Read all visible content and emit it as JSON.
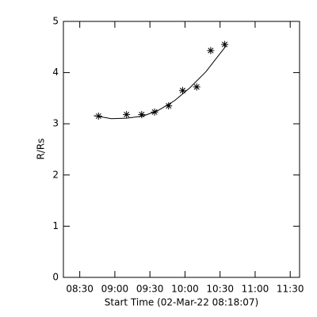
{
  "chart_data": {
    "type": "scatter",
    "xlabel": "Start Time (02-Mar-22 08:18:07)",
    "ylabel": "R/Rs",
    "xlim": [
      "08:16",
      "11:38"
    ],
    "xticks": [
      "08:30",
      "09:00",
      "09:30",
      "10:00",
      "10:30",
      "11:00",
      "11:30"
    ],
    "ylim": [
      0,
      5
    ],
    "yticks": [
      0,
      1,
      2,
      3,
      4,
      5
    ],
    "series": [
      {
        "color": "#000000",
        "marker": "asterisk",
        "x": [
          "08:46",
          "09:10",
          "09:23",
          "09:34",
          "09:46",
          "09:58",
          "10:10",
          "10:22",
          "10:34"
        ],
        "values": [
          3.15,
          3.18,
          3.18,
          3.23,
          3.35,
          3.65,
          3.72,
          4.43,
          4.55
        ]
      },
      {
        "color": "#000000",
        "marker": "line",
        "x": [
          "08:42",
          "08:57",
          "09:10",
          "09:24",
          "09:37",
          "09:51",
          "10:04",
          "10:18",
          "10:35"
        ],
        "values": [
          3.16,
          3.1,
          3.11,
          3.15,
          3.26,
          3.45,
          3.7,
          4.02,
          4.52
        ]
      }
    ]
  }
}
